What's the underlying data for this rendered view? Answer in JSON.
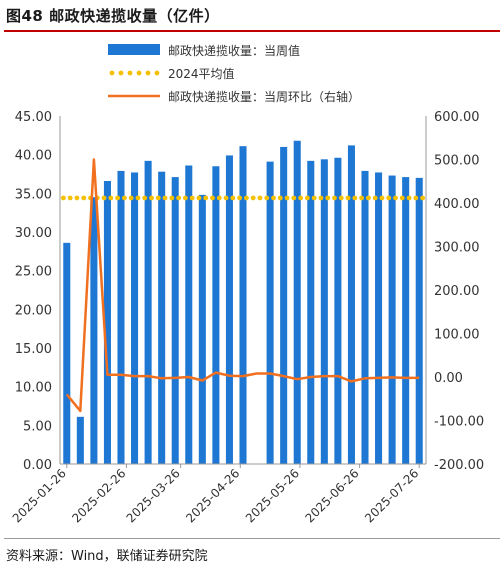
{
  "header": {
    "title": "图48 邮政快递揽收量（亿件）"
  },
  "footer": {
    "source": "资料来源：Wind，联储证券研究院"
  },
  "colors": {
    "bar": "#1f77d4",
    "line": "#f07020",
    "dotted": "#f5c000",
    "grid": "#d9d9d9"
  },
  "chart_data": {
    "type": "bar",
    "legend": [
      {
        "key": "bars",
        "label": "邮政快递揽收量：当周值",
        "marker": "bar"
      },
      {
        "key": "avg",
        "label": "2024平均值",
        "marker": "dotted"
      },
      {
        "key": "yoy",
        "label": "邮政快递揽收量：当周环比（右轴）",
        "marker": "line"
      }
    ],
    "legend_position": "top",
    "y_left": {
      "min": 0,
      "max": 45,
      "ticks": [
        "0.00",
        "5.00",
        "10.00",
        "15.00",
        "20.00",
        "25.00",
        "30.00",
        "35.00",
        "40.00",
        "45.00"
      ]
    },
    "y_right": {
      "min": -200,
      "max": 600,
      "ticks": [
        "-200.00",
        "-100.00",
        "0.00",
        "100.00",
        "200.00",
        "300.00",
        "400.00",
        "500.00",
        "600.00"
      ]
    },
    "x_tick_labels": [
      "2025-01-26",
      "2025-02-26",
      "2025-03-26",
      "2025-04-26",
      "2025-05-26",
      "2025-06-26",
      "2025-07-26"
    ],
    "x_tick_index": [
      0,
      4.4,
      8.4,
      12.8,
      17.2,
      21.6,
      26
    ],
    "series": [
      {
        "key": "bars",
        "axis": "left",
        "values": [
          28.6,
          6.1,
          34.5,
          36.6,
          37.9,
          37.7,
          39.2,
          37.8,
          37.1,
          38.6,
          34.8,
          38.5,
          39.9,
          41.1,
          null,
          39.1,
          41.0,
          41.8,
          39.2,
          39.4,
          39.6,
          41.2,
          37.9,
          37.7,
          37.3,
          37.1,
          37.0
        ]
      },
      {
        "key": "avg",
        "axis": "left",
        "constant": 34.4
      },
      {
        "key": "yoy",
        "axis": "right",
        "values": [
          -40,
          -78,
          500,
          5,
          5,
          2,
          2,
          -3,
          -2,
          0,
          -8,
          10,
          3,
          2,
          8,
          8,
          2,
          -5,
          0,
          2,
          2,
          -10,
          -3,
          -2,
          -1,
          -2,
          -2
        ]
      }
    ]
  }
}
